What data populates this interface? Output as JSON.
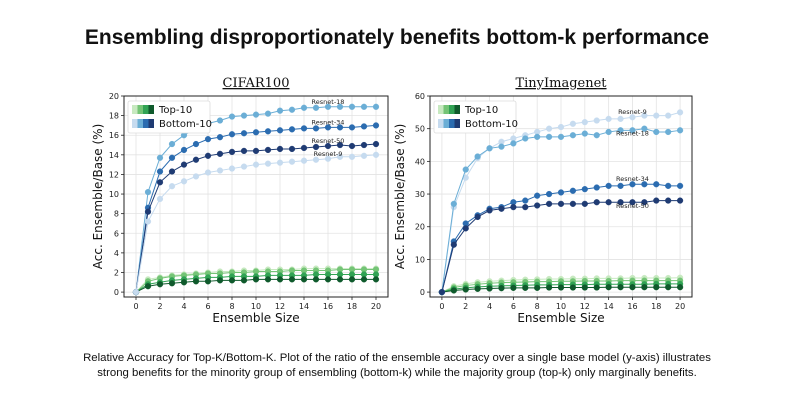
{
  "page": {
    "title": "Ensembling disproportionately benefits bottom-k performance",
    "caption_line1": "Relative Accuracy for Top-K/Bottom-K. Plot of the ratio of the ensemble accuracy over a single base model (y-axis) illustrates",
    "caption_line2": "strong benefits for the minority group of ensembling (bottom-k) while the majority group (top-k) only marginally benefits."
  },
  "colors": {
    "top_palette": [
      "#c7e9c0",
      "#74c476",
      "#31a354",
      "#0f5a2c"
    ],
    "bottom_palette": [
      "#c6dbef",
      "#6baed6",
      "#2b6cb0",
      "#1f3b73"
    ],
    "grid": "#e3e3e3"
  },
  "chart_data": [
    {
      "type": "line",
      "title": "CIFAR100",
      "xlabel": "Ensemble Size",
      "ylabel": "Acc. Ensemble/Base (%)",
      "xlim": [
        -1,
        21
      ],
      "ylim": [
        -0.5,
        20
      ],
      "xticks": [
        0,
        2,
        4,
        6,
        8,
        10,
        12,
        14,
        16,
        18,
        20
      ],
      "yticks": [
        0,
        2,
        4,
        6,
        8,
        10,
        12,
        14,
        16,
        18,
        20
      ],
      "grid": true,
      "legend_position": "top-left",
      "legend": [
        "Top-10",
        "Bottom-10"
      ],
      "x": [
        0,
        1,
        2,
        3,
        4,
        5,
        6,
        7,
        8,
        9,
        10,
        11,
        12,
        13,
        14,
        15,
        16,
        17,
        18,
        19,
        20
      ],
      "series": [
        {
          "name": "Resnet-18",
          "group": "bottom",
          "shade": 1,
          "label": true,
          "values": [
            0,
            10.2,
            13.7,
            15.1,
            16.0,
            16.7,
            17.2,
            17.5,
            17.9,
            18.0,
            18.1,
            18.2,
            18.5,
            18.6,
            18.8,
            18.8,
            18.9,
            18.9,
            18.9,
            18.9,
            18.9
          ]
        },
        {
          "name": "Resnet-34",
          "group": "bottom",
          "shade": 2,
          "label": true,
          "values": [
            0,
            8.6,
            12.3,
            13.7,
            14.5,
            15.1,
            15.6,
            15.8,
            16.1,
            16.2,
            16.3,
            16.4,
            16.5,
            16.6,
            16.7,
            16.7,
            16.8,
            16.8,
            16.8,
            16.9,
            17.0
          ]
        },
        {
          "name": "Resnet-50",
          "group": "bottom",
          "shade": 3,
          "label": true,
          "values": [
            0,
            8.2,
            11.2,
            12.3,
            13.0,
            13.5,
            13.9,
            14.1,
            14.3,
            14.4,
            14.4,
            14.5,
            14.6,
            14.6,
            14.7,
            14.8,
            14.9,
            15.0,
            14.9,
            15.0,
            15.1
          ]
        },
        {
          "name": "Resnet-9",
          "group": "bottom",
          "shade": 0,
          "label": true,
          "values": [
            0,
            7.2,
            9.5,
            10.8,
            11.3,
            11.8,
            12.2,
            12.4,
            12.6,
            12.8,
            13.0,
            13.1,
            13.2,
            13.3,
            13.4,
            13.5,
            13.6,
            13.8,
            13.8,
            13.9,
            14.0
          ]
        },
        {
          "name": "",
          "group": "top",
          "shade": 0,
          "label": false,
          "values": [
            0,
            1.3,
            1.5,
            1.7,
            1.8,
            1.9,
            2.0,
            2.1,
            2.1,
            2.2,
            2.2,
            2.3,
            2.3,
            2.3,
            2.4,
            2.4,
            2.4,
            2.4,
            2.4,
            2.4,
            2.4
          ]
        },
        {
          "name": "",
          "group": "top",
          "shade": 1,
          "label": false,
          "values": [
            0,
            1.1,
            1.4,
            1.6,
            1.7,
            1.8,
            1.9,
            1.9,
            2.0,
            2.0,
            2.1,
            2.1,
            2.1,
            2.2,
            2.2,
            2.2,
            2.2,
            2.3,
            2.3,
            2.3,
            2.3
          ]
        },
        {
          "name": "",
          "group": "top",
          "shade": 2,
          "label": false,
          "values": [
            0,
            0.8,
            1.0,
            1.2,
            1.3,
            1.4,
            1.5,
            1.5,
            1.6,
            1.6,
            1.6,
            1.7,
            1.7,
            1.7,
            1.7,
            1.8,
            1.8,
            1.8,
            1.8,
            1.8,
            1.8
          ]
        },
        {
          "name": "",
          "group": "top",
          "shade": 3,
          "label": false,
          "values": [
            0,
            0.6,
            0.8,
            0.9,
            1.0,
            1.1,
            1.1,
            1.2,
            1.2,
            1.2,
            1.3,
            1.3,
            1.3,
            1.3,
            1.3,
            1.3,
            1.3,
            1.3,
            1.3,
            1.3,
            1.3
          ]
        }
      ]
    },
    {
      "type": "line",
      "title": "TinyImagenet",
      "xlabel": "Ensemble Size",
      "ylabel": "Acc. Ensemble/Base (%)",
      "xlim": [
        -1,
        21
      ],
      "ylim": [
        -1.5,
        60
      ],
      "xticks": [
        0,
        2,
        4,
        6,
        8,
        10,
        12,
        14,
        16,
        18,
        20
      ],
      "yticks": [
        0,
        10,
        20,
        30,
        40,
        50,
        60
      ],
      "grid": true,
      "legend_position": "top-left",
      "legend": [
        "Top-10",
        "Bottom-10"
      ],
      "x": [
        0,
        1,
        2,
        3,
        4,
        5,
        6,
        7,
        8,
        9,
        10,
        11,
        12,
        13,
        14,
        15,
        16,
        17,
        18,
        19,
        20
      ],
      "series": [
        {
          "name": "Resnet-9",
          "group": "bottom",
          "shade": 0,
          "label": true,
          "values": [
            0,
            26,
            35,
            41,
            44,
            46,
            47,
            48,
            49,
            50,
            50.5,
            51.5,
            52,
            52.5,
            53,
            53,
            53.5,
            54,
            54,
            54,
            55
          ]
        },
        {
          "name": "Resnet-18",
          "group": "bottom",
          "shade": 1,
          "label": true,
          "values": [
            0,
            27,
            37.5,
            41.5,
            44,
            44.5,
            45.5,
            47,
            47.5,
            47.5,
            47.5,
            48,
            48.5,
            48,
            49,
            49.5,
            49.5,
            50,
            49,
            49,
            49.5
          ]
        },
        {
          "name": "Resnet-34",
          "group": "bottom",
          "shade": 2,
          "label": true,
          "values": [
            0,
            15.5,
            21,
            23.5,
            25.5,
            26,
            27.5,
            28,
            29.5,
            30,
            30.5,
            31,
            31.5,
            32,
            32.5,
            32.5,
            33,
            33,
            33,
            32.5,
            32.5
          ]
        },
        {
          "name": "Resnet-50",
          "group": "bottom",
          "shade": 3,
          "label": true,
          "values": [
            0,
            14.5,
            19.5,
            23,
            25,
            25.5,
            26,
            26,
            26.5,
            27,
            27,
            27,
            27,
            27.5,
            27.5,
            27.5,
            27.5,
            27.5,
            28,
            28,
            28
          ]
        },
        {
          "name": "",
          "group": "top",
          "shade": 0,
          "label": false,
          "values": [
            0,
            1.8,
            2.5,
            3.0,
            3.3,
            3.5,
            3.7,
            3.8,
            3.9,
            4.0,
            4.0,
            4.1,
            4.1,
            4.2,
            4.2,
            4.2,
            4.3,
            4.3,
            4.3,
            4.3,
            4.4
          ]
        },
        {
          "name": "",
          "group": "top",
          "shade": 1,
          "label": false,
          "values": [
            0,
            1.4,
            2.0,
            2.4,
            2.7,
            2.9,
            3.0,
            3.1,
            3.2,
            3.2,
            3.3,
            3.3,
            3.4,
            3.4,
            3.4,
            3.5,
            3.5,
            3.5,
            3.5,
            3.5,
            3.5
          ]
        },
        {
          "name": "",
          "group": "top",
          "shade": 2,
          "label": false,
          "values": [
            0,
            0.9,
            1.3,
            1.6,
            1.8,
            1.9,
            2.0,
            2.1,
            2.2,
            2.2,
            2.3,
            2.3,
            2.3,
            2.4,
            2.4,
            2.4,
            2.4,
            2.4,
            2.5,
            2.5,
            2.5
          ]
        },
        {
          "name": "",
          "group": "top",
          "shade": 3,
          "label": false,
          "values": [
            0,
            0.5,
            0.8,
            1.0,
            1.1,
            1.2,
            1.3,
            1.3,
            1.3,
            1.4,
            1.4,
            1.4,
            1.4,
            1.4,
            1.5,
            1.5,
            1.5,
            1.5,
            1.5,
            1.5,
            1.5
          ]
        }
      ]
    }
  ]
}
